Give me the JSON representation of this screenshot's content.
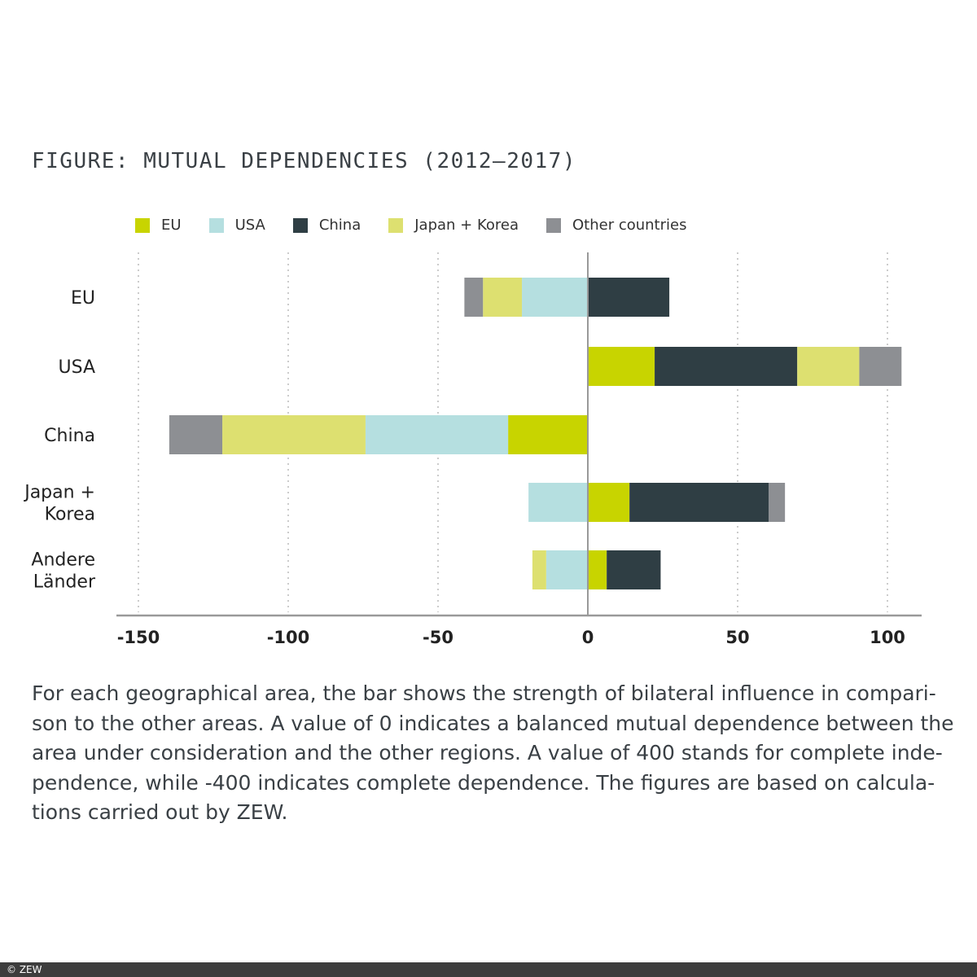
{
  "chart_data": {
    "type": "bar",
    "orientation": "horizontal-stacked",
    "title": "FIGURE: MUTUAL DEPENDENCIES (2012–2017)",
    "categories": [
      [
        "EU"
      ],
      [
        "USA"
      ],
      [
        "China"
      ],
      [
        "Japan +",
        "Korea"
      ],
      [
        "Andere",
        "Länder"
      ]
    ],
    "xlim": [
      -150,
      110
    ],
    "xticks": [
      -150,
      -100,
      -50,
      0,
      50,
      100
    ],
    "grid": "vertical dotted",
    "legend_placement": "top",
    "series": [
      {
        "name": "EU",
        "color": "#c8d400",
        "values": [
          0,
          22.3,
          -26.6,
          13.9,
          6.3
        ]
      },
      {
        "name": "USA",
        "color": "#b5dfe0",
        "values": [
          -22,
          0,
          -47.6,
          -19.8,
          -13.9
        ]
      },
      {
        "name": "China",
        "color": "#2f3e44",
        "values": [
          27.2,
          47.6,
          0,
          46.5,
          18
        ]
      },
      {
        "name": "Japan + Korea",
        "color": "#dde070",
        "values": [
          -13,
          20.7,
          -47.8,
          0,
          -4.6
        ]
      },
      {
        "name": "Other countries",
        "color": "#8d8f93",
        "values": [
          -6.2,
          14.1,
          -17.7,
          5.4,
          0
        ]
      }
    ]
  },
  "caption": "For each geographical area, the bar shows the strength of bilateral influence in compari-son to the other areas. A value of 0 indicates a balanced mutual dependence between the area under consideration and the other regions. A value of 400 stands for complete inde-pendence, while -400 indicates complete dependence. The figures are based on calcula-tions carried out by ZEW.",
  "footer": "© ZEW"
}
